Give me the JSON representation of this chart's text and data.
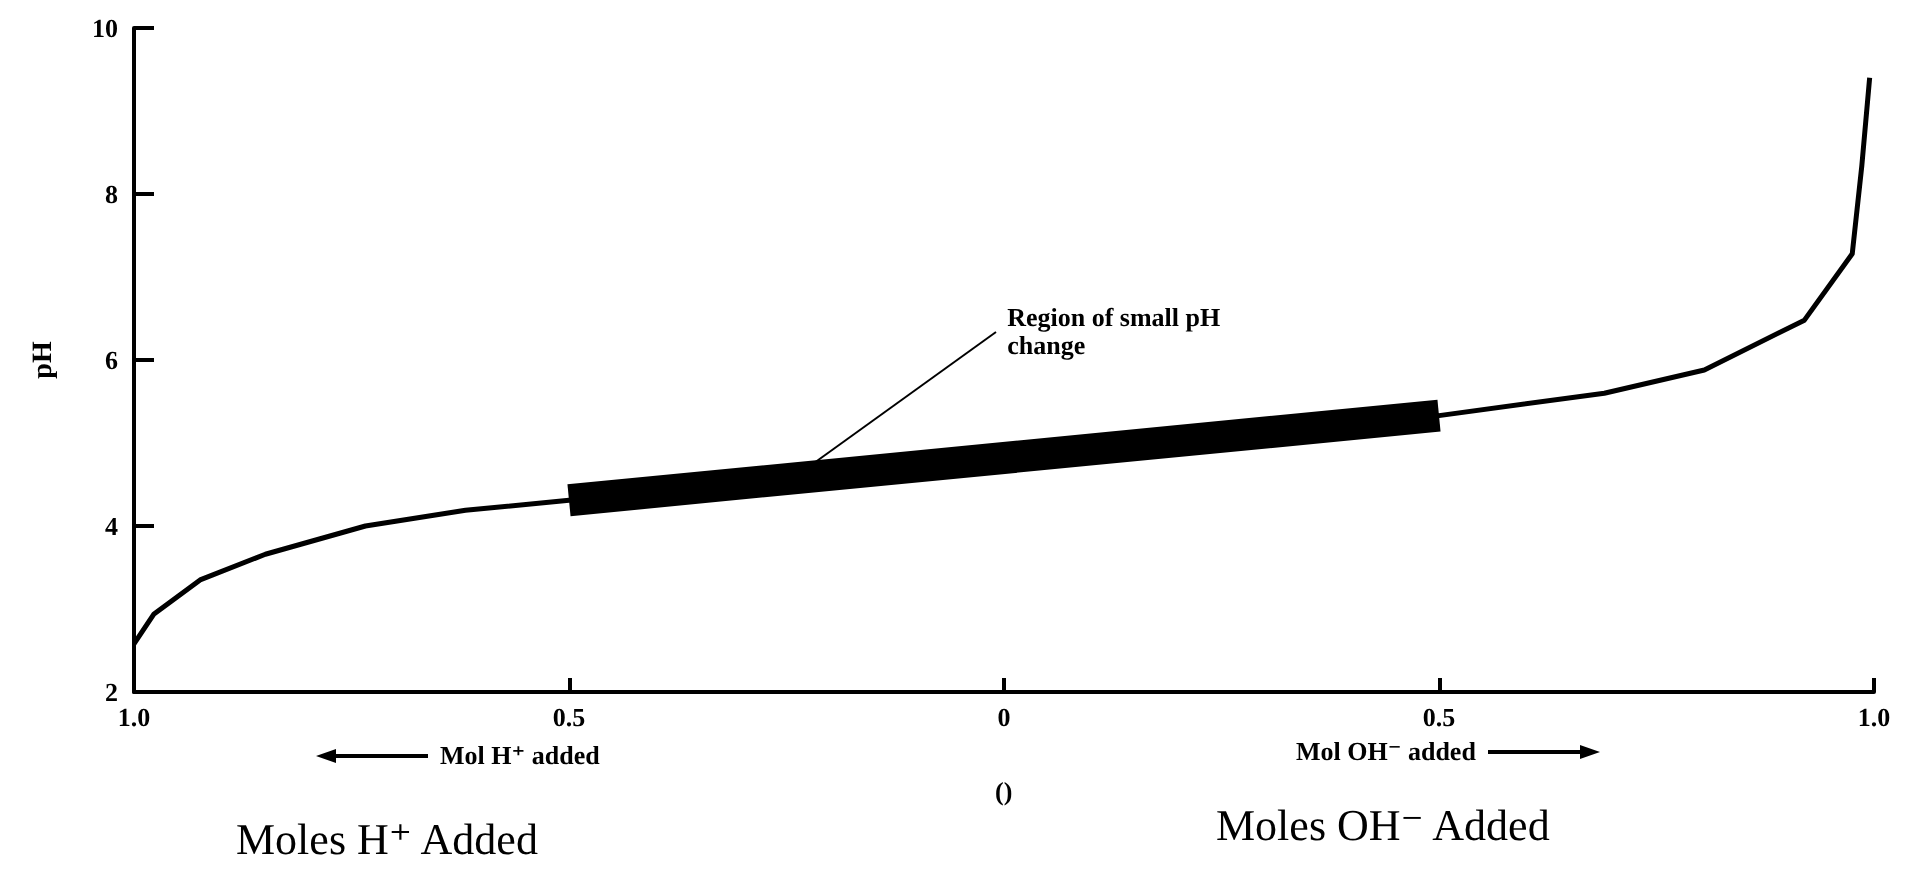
{
  "chart_data": {
    "type": "line",
    "ylabel": "pH",
    "xlabel": "()",
    "annotations": [
      {
        "text": "Region of small pH change",
        "x": -0.24,
        "y": 4.6
      },
      "Mol H⁺ added",
      "Mol OH⁻ added",
      "Moles H⁺ Added",
      "Moles OH⁻ Added"
    ],
    "xlim": [
      -1,
      1
    ],
    "ylim": [
      2,
      10
    ],
    "xticks": [
      {
        "value": -1,
        "label": "1.0"
      },
      {
        "value": -0.5,
        "label": "0.5"
      },
      0,
      {
        "value": 0.5,
        "label": "0.5"
      },
      {
        "value": 1,
        "label": "1.0"
      }
    ],
    "yticks": [
      2,
      4,
      6,
      8,
      10
    ],
    "grid": false,
    "marker": "none",
    "line_style": "solid",
    "series": [
      {
        "color": "#000000",
        "x": [
          -1,
          -0.977,
          -0.924,
          -0.849,
          -0.734,
          -0.619,
          -0.5,
          0.5,
          0.69,
          0.805,
          0.92,
          0.975,
          0.986,
          0.995
        ],
        "values": [
          2.58,
          2.94,
          3.35,
          3.66,
          4.0,
          4.19,
          4.31,
          5.33,
          5.6,
          5.88,
          6.48,
          7.28,
          8.34,
          9.4
        ]
      },
      {
        "color": "#000000",
        "x": [
          -0.5,
          0.5
        ],
        "values": [
          4.31,
          5.33
        ]
      }
    ]
  }
}
